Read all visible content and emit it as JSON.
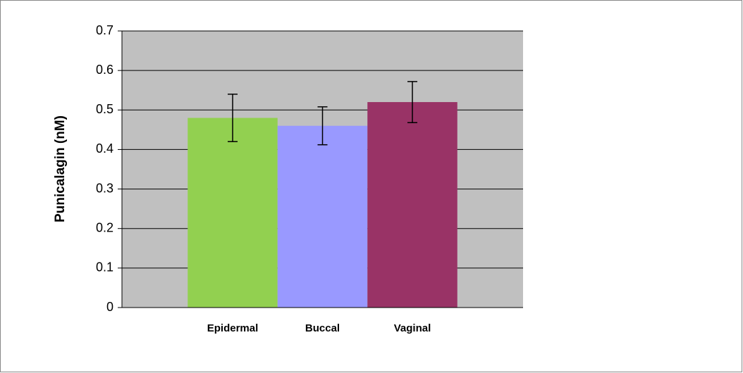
{
  "chart_data": {
    "type": "bar",
    "y_label": "Punicalagin (nM)",
    "categories": [
      "Epidermal",
      "Buccal",
      "Vaginal"
    ],
    "values": [
      0.48,
      0.46,
      0.52
    ],
    "errors": [
      0.06,
      0.048,
      0.052
    ],
    "colors": [
      "#92d050",
      "#9999ff",
      "#993366"
    ],
    "ylim": [
      0,
      0.7
    ],
    "yticks": [
      0,
      0.1,
      0.2,
      0.3,
      0.4,
      0.5,
      0.6,
      0.7
    ],
    "grid": true,
    "plot_background": "#c0c0c0"
  }
}
